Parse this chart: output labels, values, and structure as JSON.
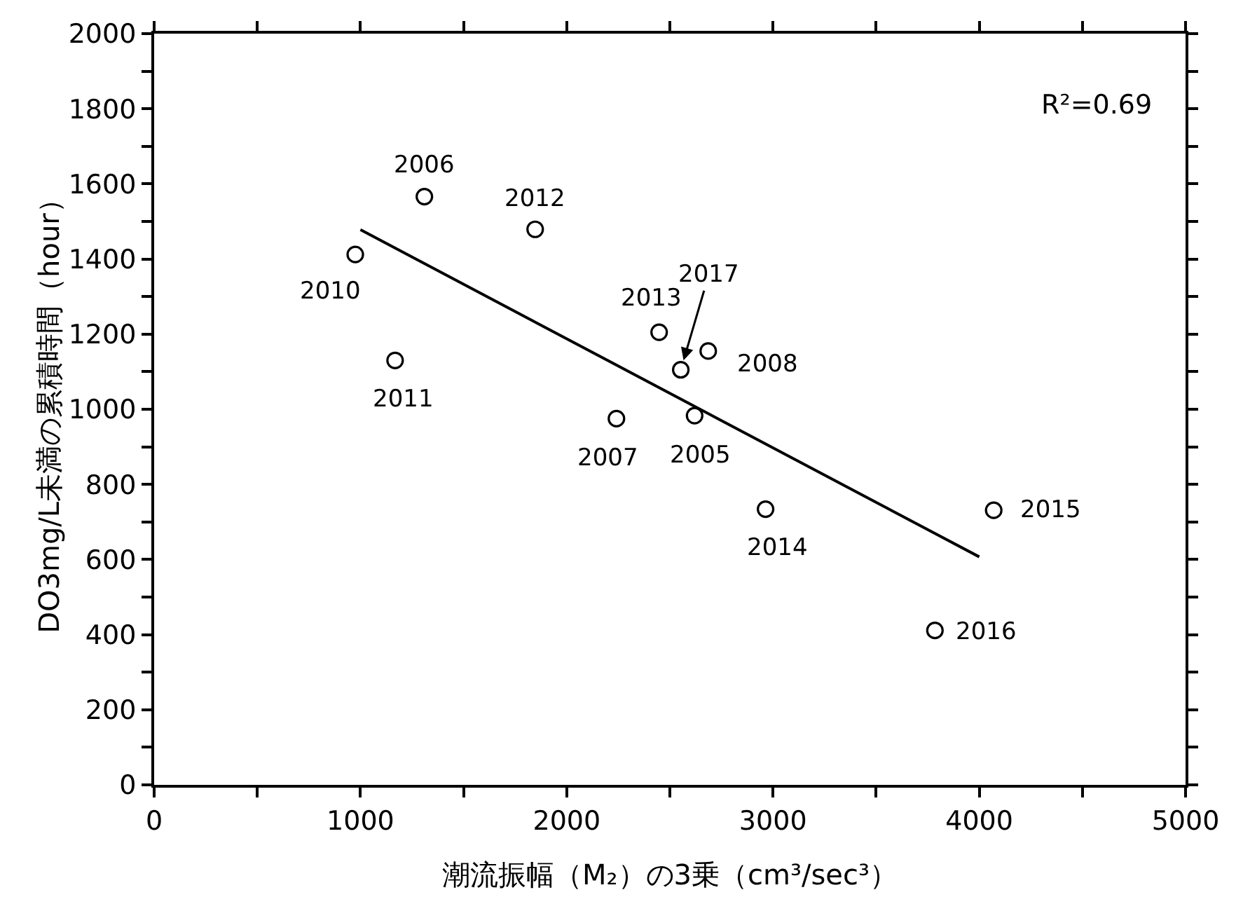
{
  "chart_data": {
    "type": "scatter",
    "xlabel": "潮流振幅（M₂）の3乗（cm³/sec³）",
    "ylabel": "DO3mg/L未満の累積時間（hour）",
    "series": [
      {
        "color": "#000000",
        "marker": "circle",
        "x": [
          1310,
          1847,
          975,
          1168,
          2448,
          2553,
          2686,
          2241,
          2620,
          2964,
          4070,
          3785
        ],
        "values": [
          1566,
          1479,
          1412,
          1130,
          1205,
          1105,
          1155,
          975,
          983,
          734,
          731,
          411
        ]
      },
      {
        "type": "line",
        "color": "#000000",
        "marker": "none",
        "line_style": "solid",
        "x": [
          1000,
          4000
        ],
        "values": [
          1478,
          607
        ]
      }
    ],
    "annotations": [
      {
        "text": "2006",
        "x": 1310,
        "y": 1566
      },
      {
        "text": "2012",
        "x": 1847,
        "y": 1479
      },
      {
        "text": "2010",
        "x": 975,
        "y": 1412
      },
      {
        "text": "2011",
        "x": 1168,
        "y": 1130
      },
      {
        "text": "2013",
        "x": 2448,
        "y": 1205
      },
      {
        "text": "2017",
        "x": 2553,
        "y": 1105
      },
      {
        "text": "2008",
        "x": 2686,
        "y": 1155
      },
      {
        "text": "2007",
        "x": 2241,
        "y": 975
      },
      {
        "text": "2005",
        "x": 2620,
        "y": 983
      },
      {
        "text": "2014",
        "x": 2964,
        "y": 734
      },
      {
        "text": "2015",
        "x": 4070,
        "y": 731
      },
      {
        "text": "2016",
        "x": 3785,
        "y": 411
      },
      "R²=0.69"
    ],
    "xlim": [
      0,
      5000
    ],
    "xticks": [
      0,
      {
        "value": 500,
        "label": null
      },
      1000,
      {
        "value": 1500,
        "label": null
      },
      2000,
      {
        "value": 2500,
        "label": null
      },
      3000,
      {
        "value": 3500,
        "label": null
      },
      4000,
      {
        "value": 4500,
        "label": null
      },
      5000
    ],
    "ylim": [
      0,
      2000
    ],
    "yticks": [
      0,
      {
        "value": 100,
        "label": null
      },
      200,
      {
        "value": 300,
        "label": null
      },
      400,
      {
        "value": 500,
        "label": null
      },
      600,
      {
        "value": 700,
        "label": null
      },
      800,
      {
        "value": 900,
        "label": null
      },
      1000,
      {
        "value": 1100,
        "label": null
      },
      1200,
      {
        "value": 1300,
        "label": null
      },
      1400,
      {
        "value": 1500,
        "label": null
      },
      1600,
      {
        "value": 1700,
        "label": null
      },
      1800,
      {
        "value": 1900,
        "label": null
      },
      2000
    ],
    "grid": false
  }
}
